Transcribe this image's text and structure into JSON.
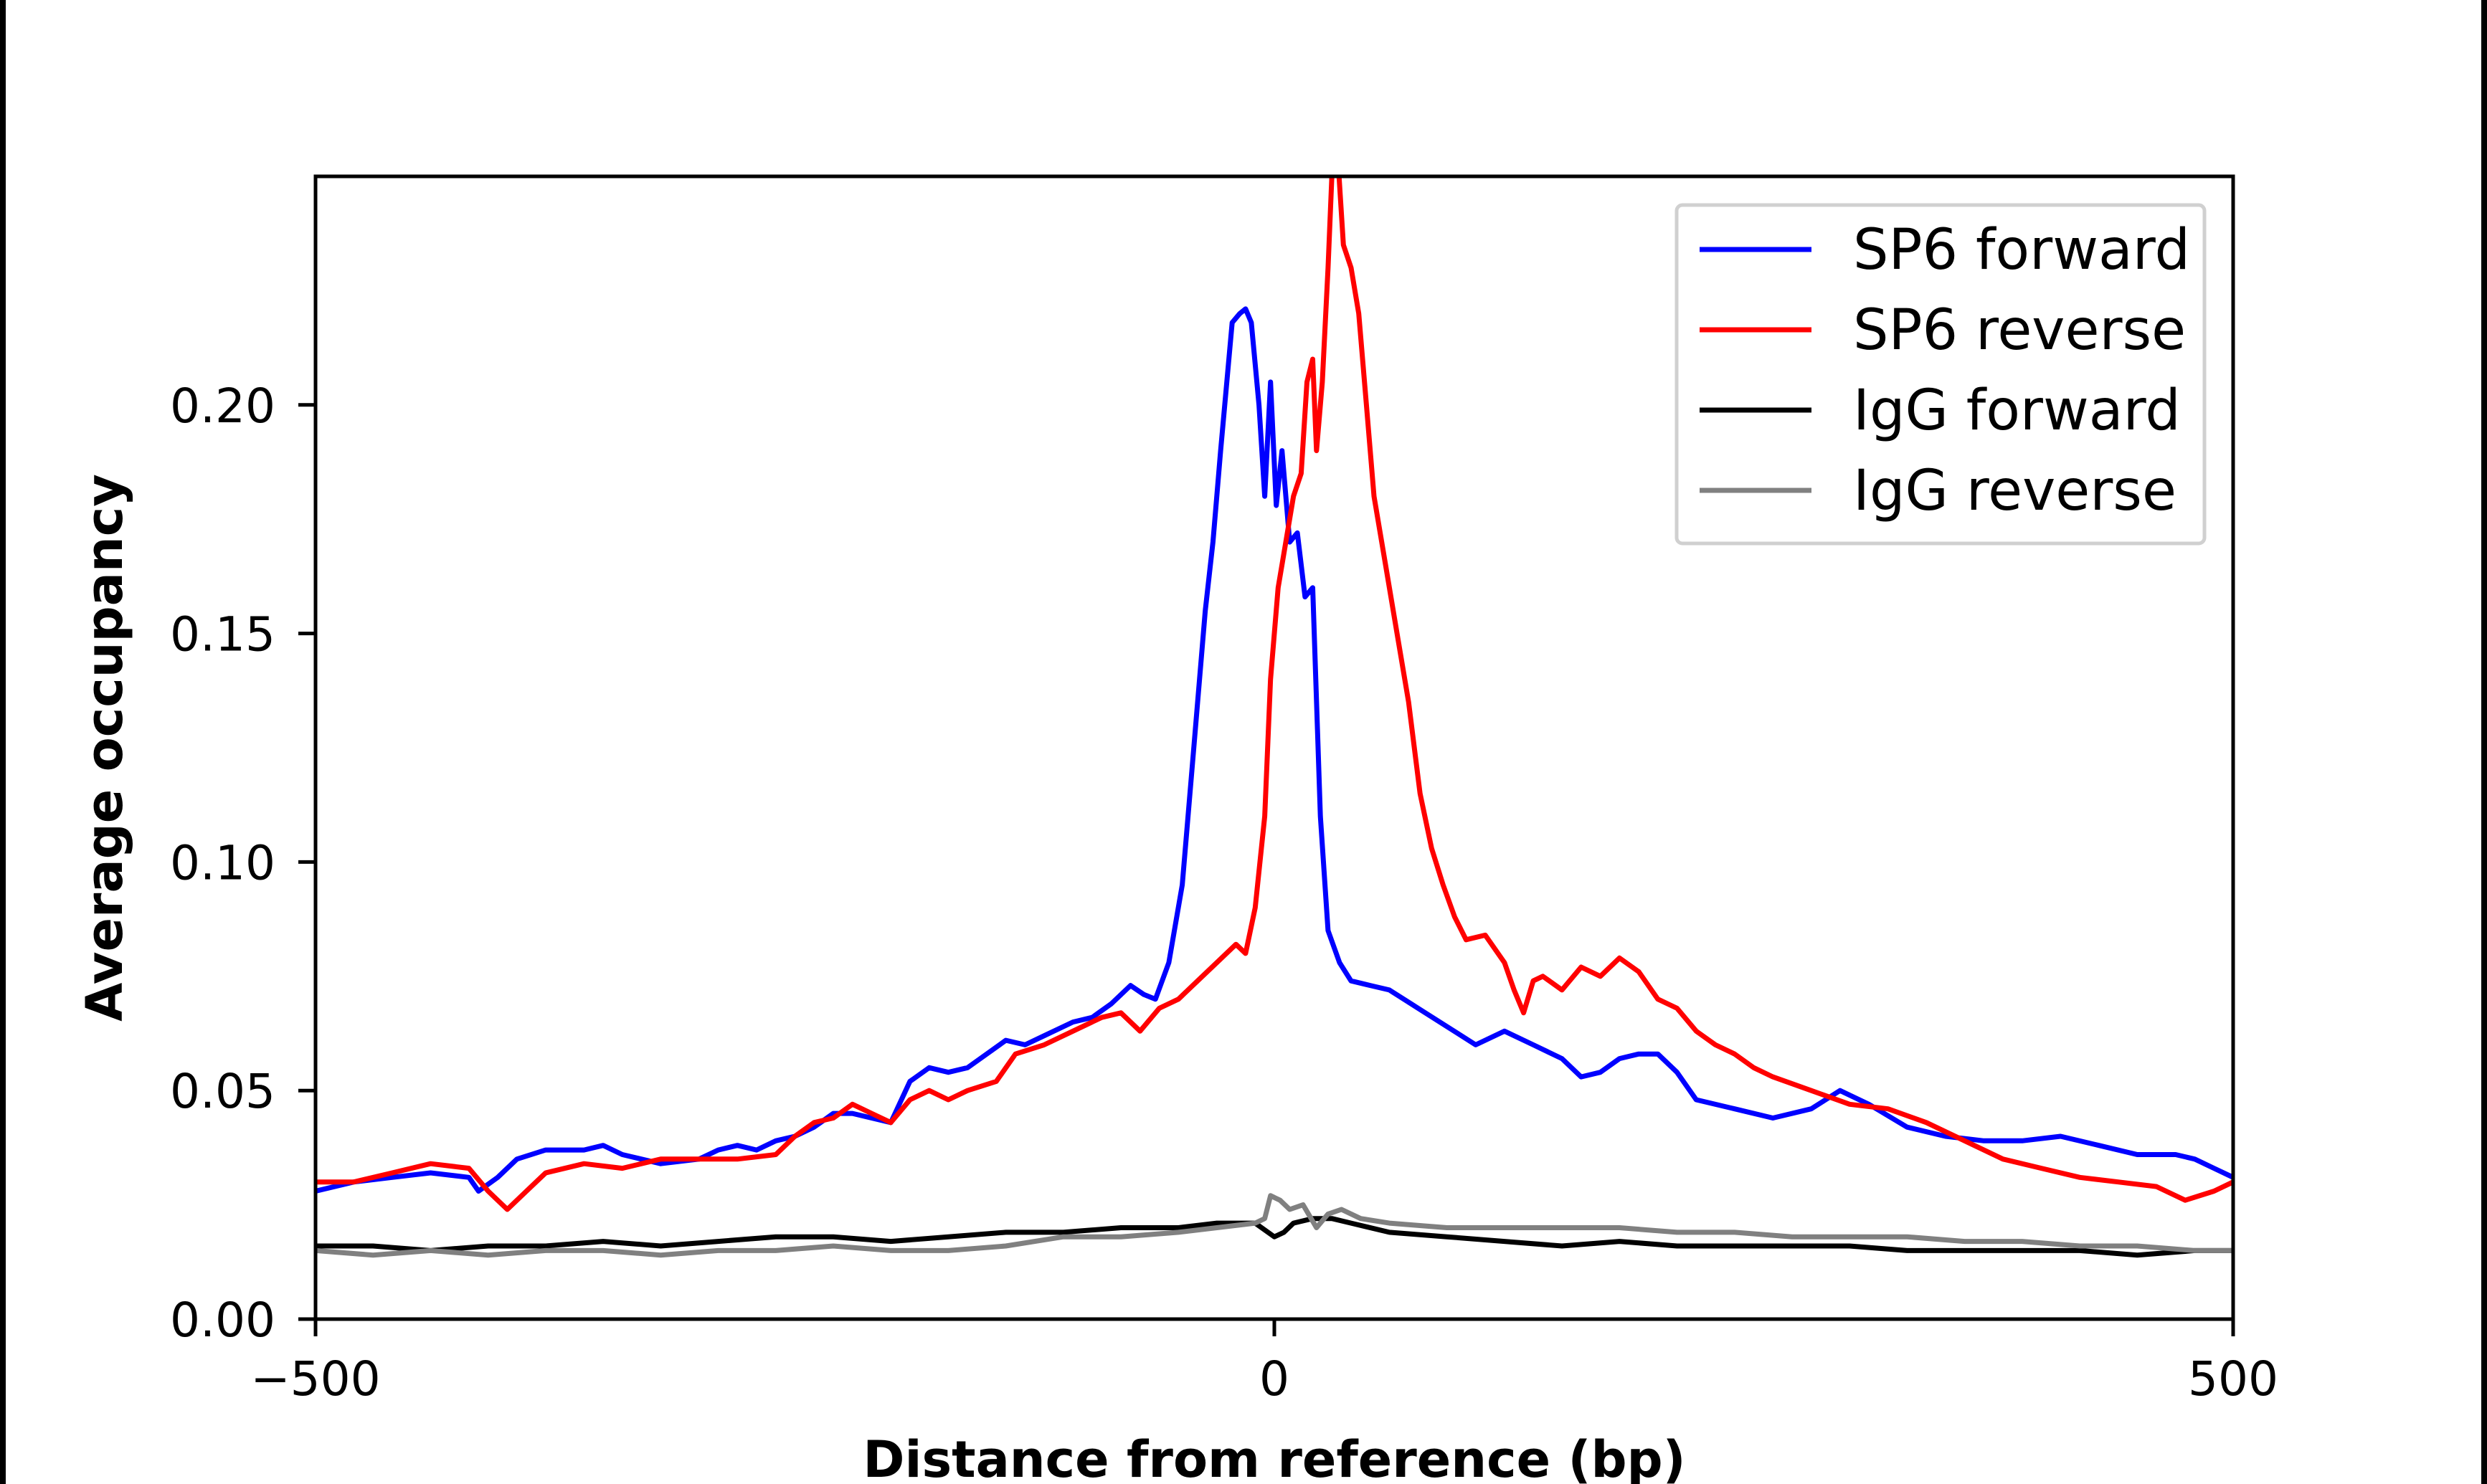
{
  "chart_data": {
    "type": "line",
    "title": "",
    "xlabel": "Distance from reference (bp)",
    "ylabel": "Average occupancy",
    "xlim": [
      -500,
      500
    ],
    "ylim": [
      0,
      0.25
    ],
    "xticks": [
      -500,
      0,
      500
    ],
    "xtick_labels": [
      "−500",
      "0",
      "500"
    ],
    "yticks": [
      0,
      0.05,
      0.1,
      0.15,
      0.2
    ],
    "ytick_labels": [
      "0.00",
      "0.05",
      "0.10",
      "0.15",
      "0.20"
    ],
    "grid": false,
    "legend_position": "top-right",
    "series": [
      {
        "name": "SP6 forward",
        "color": "#0000ff",
        "points": [
          [
            -500,
            0.028
          ],
          [
            -480,
            0.03
          ],
          [
            -460,
            0.031
          ],
          [
            -440,
            0.032
          ],
          [
            -420,
            0.031
          ],
          [
            -415,
            0.028
          ],
          [
            -405,
            0.031
          ],
          [
            -395,
            0.035
          ],
          [
            -380,
            0.037
          ],
          [
            -360,
            0.037
          ],
          [
            -350,
            0.038
          ],
          [
            -340,
            0.036
          ],
          [
            -320,
            0.034
          ],
          [
            -300,
            0.035
          ],
          [
            -290,
            0.037
          ],
          [
            -280,
            0.038
          ],
          [
            -270,
            0.037
          ],
          [
            -260,
            0.039
          ],
          [
            -250,
            0.04
          ],
          [
            -240,
            0.042
          ],
          [
            -230,
            0.045
          ],
          [
            -220,
            0.045
          ],
          [
            -200,
            0.043
          ],
          [
            -190,
            0.052
          ],
          [
            -180,
            0.055
          ],
          [
            -170,
            0.054
          ],
          [
            -160,
            0.055
          ],
          [
            -140,
            0.061
          ],
          [
            -130,
            0.06
          ],
          [
            -120,
            0.062
          ],
          [
            -105,
            0.065
          ],
          [
            -95,
            0.066
          ],
          [
            -85,
            0.069
          ],
          [
            -75,
            0.073
          ],
          [
            -68,
            0.071
          ],
          [
            -62,
            0.07
          ],
          [
            -55,
            0.078
          ],
          [
            -48,
            0.095
          ],
          [
            -42,
            0.125
          ],
          [
            -36,
            0.155
          ],
          [
            -32,
            0.17
          ],
          [
            -28,
            0.19
          ],
          [
            -22,
            0.218
          ],
          [
            -18,
            0.22
          ],
          [
            -15,
            0.221
          ],
          [
            -12,
            0.218
          ],
          [
            -8,
            0.2
          ],
          [
            -5,
            0.18
          ],
          [
            -2,
            0.205
          ],
          [
            1,
            0.178
          ],
          [
            4,
            0.19
          ],
          [
            8,
            0.17
          ],
          [
            12,
            0.172
          ],
          [
            16,
            0.158
          ],
          [
            20,
            0.16
          ],
          [
            24,
            0.11
          ],
          [
            28,
            0.085
          ],
          [
            34,
            0.078
          ],
          [
            40,
            0.074
          ],
          [
            50,
            0.073
          ],
          [
            60,
            0.072
          ],
          [
            75,
            0.068
          ],
          [
            90,
            0.064
          ],
          [
            105,
            0.06
          ],
          [
            120,
            0.063
          ],
          [
            135,
            0.06
          ],
          [
            150,
            0.057
          ],
          [
            160,
            0.053
          ],
          [
            170,
            0.054
          ],
          [
            180,
            0.057
          ],
          [
            190,
            0.058
          ],
          [
            200,
            0.058
          ],
          [
            210,
            0.054
          ],
          [
            220,
            0.048
          ],
          [
            240,
            0.046
          ],
          [
            260,
            0.044
          ],
          [
            280,
            0.046
          ],
          [
            295,
            0.05
          ],
          [
            310,
            0.047
          ],
          [
            330,
            0.042
          ],
          [
            350,
            0.04
          ],
          [
            370,
            0.039
          ],
          [
            390,
            0.039
          ],
          [
            410,
            0.04
          ],
          [
            430,
            0.038
          ],
          [
            450,
            0.036
          ],
          [
            470,
            0.036
          ],
          [
            480,
            0.035
          ],
          [
            490,
            0.033
          ],
          [
            500,
            0.031
          ]
        ]
      },
      {
        "name": "SP6 reverse",
        "color": "#ff0000",
        "points": [
          [
            -500,
            0.03
          ],
          [
            -480,
            0.03
          ],
          [
            -460,
            0.032
          ],
          [
            -440,
            0.034
          ],
          [
            -420,
            0.033
          ],
          [
            -410,
            0.028
          ],
          [
            -400,
            0.024
          ],
          [
            -390,
            0.028
          ],
          [
            -380,
            0.032
          ],
          [
            -360,
            0.034
          ],
          [
            -340,
            0.033
          ],
          [
            -320,
            0.035
          ],
          [
            -300,
            0.035
          ],
          [
            -280,
            0.035
          ],
          [
            -260,
            0.036
          ],
          [
            -250,
            0.04
          ],
          [
            -240,
            0.043
          ],
          [
            -230,
            0.044
          ],
          [
            -220,
            0.047
          ],
          [
            -210,
            0.045
          ],
          [
            -200,
            0.043
          ],
          [
            -190,
            0.048
          ],
          [
            -180,
            0.05
          ],
          [
            -170,
            0.048
          ],
          [
            -160,
            0.05
          ],
          [
            -145,
            0.052
          ],
          [
            -135,
            0.058
          ],
          [
            -120,
            0.06
          ],
          [
            -105,
            0.063
          ],
          [
            -90,
            0.066
          ],
          [
            -80,
            0.067
          ],
          [
            -70,
            0.063
          ],
          [
            -60,
            0.068
          ],
          [
            -50,
            0.07
          ],
          [
            -40,
            0.074
          ],
          [
            -30,
            0.078
          ],
          [
            -20,
            0.082
          ],
          [
            -15,
            0.08
          ],
          [
            -10,
            0.09
          ],
          [
            -5,
            0.11
          ],
          [
            -2,
            0.14
          ],
          [
            2,
            0.16
          ],
          [
            6,
            0.17
          ],
          [
            10,
            0.18
          ],
          [
            14,
            0.185
          ],
          [
            17,
            0.205
          ],
          [
            20,
            0.21
          ],
          [
            22,
            0.19
          ],
          [
            25,
            0.205
          ],
          [
            28,
            0.23
          ],
          [
            30,
            0.25
          ],
          [
            33,
            0.255
          ],
          [
            36,
            0.235
          ],
          [
            40,
            0.23
          ],
          [
            44,
            0.22
          ],
          [
            48,
            0.2
          ],
          [
            52,
            0.18
          ],
          [
            58,
            0.165
          ],
          [
            64,
            0.15
          ],
          [
            70,
            0.135
          ],
          [
            76,
            0.115
          ],
          [
            82,
            0.103
          ],
          [
            88,
            0.095
          ],
          [
            94,
            0.088
          ],
          [
            100,
            0.083
          ],
          [
            110,
            0.084
          ],
          [
            120,
            0.078
          ],
          [
            125,
            0.072
          ],
          [
            130,
            0.067
          ],
          [
            135,
            0.074
          ],
          [
            140,
            0.075
          ],
          [
            150,
            0.072
          ],
          [
            160,
            0.077
          ],
          [
            170,
            0.075
          ],
          [
            180,
            0.079
          ],
          [
            190,
            0.076
          ],
          [
            200,
            0.07
          ],
          [
            210,
            0.068
          ],
          [
            220,
            0.063
          ],
          [
            230,
            0.06
          ],
          [
            240,
            0.058
          ],
          [
            250,
            0.055
          ],
          [
            260,
            0.053
          ],
          [
            280,
            0.05
          ],
          [
            300,
            0.047
          ],
          [
            320,
            0.046
          ],
          [
            340,
            0.043
          ],
          [
            360,
            0.039
          ],
          [
            380,
            0.035
          ],
          [
            400,
            0.033
          ],
          [
            420,
            0.031
          ],
          [
            440,
            0.03
          ],
          [
            460,
            0.029
          ],
          [
            475,
            0.026
          ],
          [
            490,
            0.028
          ],
          [
            500,
            0.03
          ]
        ]
      },
      {
        "name": "IgG forward",
        "color": "#000000",
        "points": [
          [
            -500,
            0.016
          ],
          [
            -470,
            0.016
          ],
          [
            -440,
            0.015
          ],
          [
            -410,
            0.016
          ],
          [
            -380,
            0.016
          ],
          [
            -350,
            0.017
          ],
          [
            -320,
            0.016
          ],
          [
            -290,
            0.017
          ],
          [
            -260,
            0.018
          ],
          [
            -230,
            0.018
          ],
          [
            -200,
            0.017
          ],
          [
            -170,
            0.018
          ],
          [
            -140,
            0.019
          ],
          [
            -110,
            0.019
          ],
          [
            -80,
            0.02
          ],
          [
            -50,
            0.02
          ],
          [
            -30,
            0.021
          ],
          [
            -10,
            0.021
          ],
          [
            0,
            0.018
          ],
          [
            5,
            0.019
          ],
          [
            10,
            0.021
          ],
          [
            20,
            0.022
          ],
          [
            30,
            0.022
          ],
          [
            40,
            0.021
          ],
          [
            60,
            0.019
          ],
          [
            90,
            0.018
          ],
          [
            120,
            0.017
          ],
          [
            150,
            0.016
          ],
          [
            180,
            0.017
          ],
          [
            210,
            0.016
          ],
          [
            240,
            0.016
          ],
          [
            270,
            0.016
          ],
          [
            300,
            0.016
          ],
          [
            330,
            0.015
          ],
          [
            360,
            0.015
          ],
          [
            390,
            0.015
          ],
          [
            420,
            0.015
          ],
          [
            450,
            0.014
          ],
          [
            480,
            0.015
          ],
          [
            500,
            0.015
          ]
        ]
      },
      {
        "name": "IgG reverse",
        "color": "#808080",
        "points": [
          [
            -500,
            0.015
          ],
          [
            -470,
            0.014
          ],
          [
            -440,
            0.015
          ],
          [
            -410,
            0.014
          ],
          [
            -380,
            0.015
          ],
          [
            -350,
            0.015
          ],
          [
            -320,
            0.014
          ],
          [
            -290,
            0.015
          ],
          [
            -260,
            0.015
          ],
          [
            -230,
            0.016
          ],
          [
            -200,
            0.015
          ],
          [
            -170,
            0.015
          ],
          [
            -140,
            0.016
          ],
          [
            -110,
            0.018
          ],
          [
            -80,
            0.018
          ],
          [
            -50,
            0.019
          ],
          [
            -30,
            0.02
          ],
          [
            -10,
            0.021
          ],
          [
            -5,
            0.022
          ],
          [
            -2,
            0.027
          ],
          [
            3,
            0.026
          ],
          [
            8,
            0.024
          ],
          [
            15,
            0.025
          ],
          [
            22,
            0.02
          ],
          [
            28,
            0.023
          ],
          [
            35,
            0.024
          ],
          [
            45,
            0.022
          ],
          [
            60,
            0.021
          ],
          [
            90,
            0.02
          ],
          [
            120,
            0.02
          ],
          [
            150,
            0.02
          ],
          [
            180,
            0.02
          ],
          [
            210,
            0.019
          ],
          [
            240,
            0.019
          ],
          [
            270,
            0.018
          ],
          [
            300,
            0.018
          ],
          [
            330,
            0.018
          ],
          [
            360,
            0.017
          ],
          [
            390,
            0.017
          ],
          [
            420,
            0.016
          ],
          [
            450,
            0.016
          ],
          [
            480,
            0.015
          ],
          [
            500,
            0.015
          ]
        ]
      }
    ]
  }
}
